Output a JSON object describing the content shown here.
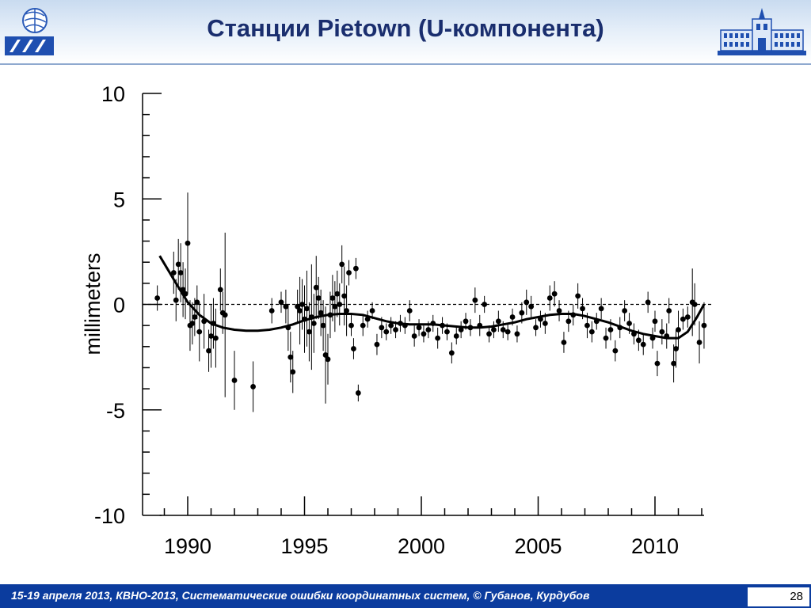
{
  "header": {
    "title": "Станции Pietown (U-компонента)",
    "logo_left_icon": "ipa-logo-icon",
    "logo_right_icon": "building-icon"
  },
  "footer": {
    "text": "15-19  апреля  2013,  КВНО-2013,  Систематические ошибки координатных систем, © Губанов, Курдубов",
    "page_number": "28",
    "background_color": "#0b3c9e"
  },
  "chart_data": {
    "type": "scatter",
    "title": "",
    "xlabel": "",
    "ylabel": "millimeters",
    "xlim": [
      1988.0,
      2013.0
    ],
    "ylim": [
      -10,
      10
    ],
    "x_ticks": [
      1990,
      1995,
      2000,
      2005,
      2010
    ],
    "y_ticks": [
      10,
      5,
      0,
      -5,
      -10
    ],
    "grid": false,
    "reference_line": {
      "y": 0,
      "style": "dashed"
    },
    "series": [
      {
        "kind": "points_with_error_bars",
        "points": [
          [
            1988.7,
            0.3,
            0.6
          ],
          [
            1989.4,
            1.5,
            1.0
          ],
          [
            1989.5,
            0.2,
            1.0
          ],
          [
            1989.6,
            1.9,
            1.2
          ],
          [
            1989.7,
            1.5,
            1.4
          ],
          [
            1989.8,
            0.7,
            1.3
          ],
          [
            1989.9,
            0.5,
            1.2
          ],
          [
            1990.0,
            2.9,
            2.4
          ],
          [
            1990.1,
            -1.0,
            1.2
          ],
          [
            1990.2,
            -0.9,
            1.0
          ],
          [
            1990.3,
            -0.6,
            0.9
          ],
          [
            1990.4,
            0.1,
            0.8
          ],
          [
            1990.5,
            -1.3,
            1.4
          ],
          [
            1990.7,
            -0.8,
            1.3
          ],
          [
            1990.9,
            -2.2,
            1.0
          ],
          [
            1991.0,
            -1.5,
            1.5
          ],
          [
            1991.1,
            -0.9,
            1.2
          ],
          [
            1991.2,
            -1.6,
            1.4
          ],
          [
            1991.4,
            0.7,
            1.0
          ],
          [
            1991.5,
            -0.4,
            1.0
          ],
          [
            1991.6,
            -0.5,
            3.9
          ],
          [
            1992.0,
            -3.6,
            1.4
          ],
          [
            1992.8,
            -3.9,
            1.2
          ],
          [
            1993.6,
            -0.3,
            0.6
          ],
          [
            1994.0,
            0.1,
            0.5
          ],
          [
            1994.2,
            -0.1,
            0.8
          ],
          [
            1994.3,
            -1.1,
            1.1
          ],
          [
            1994.4,
            -2.5,
            1.2
          ],
          [
            1994.5,
            -3.2,
            1.0
          ],
          [
            1994.7,
            -0.1,
            0.8
          ],
          [
            1994.8,
            -0.3,
            1.6
          ],
          [
            1994.9,
            0.0,
            1.2
          ],
          [
            1995.0,
            -0.7,
            1.6
          ],
          [
            1995.1,
            -0.2,
            1.8
          ],
          [
            1995.2,
            -1.3,
            1.4
          ],
          [
            1995.3,
            -0.6,
            2.5
          ],
          [
            1995.4,
            -0.9,
            1.4
          ],
          [
            1995.5,
            0.8,
            1.5
          ],
          [
            1995.6,
            0.3,
            1.0
          ],
          [
            1995.7,
            -0.4,
            1.1
          ],
          [
            1995.8,
            -1.0,
            1.2
          ],
          [
            1995.9,
            -2.4,
            2.3
          ],
          [
            1996.0,
            -2.6,
            1.2
          ],
          [
            1996.1,
            -0.5,
            1.1
          ],
          [
            1996.2,
            0.3,
            1.1
          ],
          [
            1996.3,
            -0.1,
            1.2
          ],
          [
            1996.4,
            0.5,
            1.1
          ],
          [
            1996.5,
            0.0,
            1.0
          ],
          [
            1996.6,
            1.9,
            0.9
          ],
          [
            1996.7,
            0.4,
            1.4
          ],
          [
            1996.8,
            -0.3,
            1.2
          ],
          [
            1996.9,
            1.5,
            0.6
          ],
          [
            1997.0,
            -1.0,
            0.5
          ],
          [
            1997.1,
            -2.1,
            0.5
          ],
          [
            1997.2,
            1.7,
            0.5
          ],
          [
            1997.3,
            -4.2,
            0.4
          ],
          [
            1997.5,
            -1.0,
            0.5
          ],
          [
            1997.7,
            -0.7,
            0.4
          ],
          [
            1997.9,
            -0.3,
            0.4
          ],
          [
            1998.1,
            -1.9,
            0.5
          ],
          [
            1998.3,
            -1.1,
            0.5
          ],
          [
            1998.5,
            -1.3,
            0.4
          ],
          [
            1998.7,
            -1.0,
            0.4
          ],
          [
            1998.9,
            -1.2,
            0.4
          ],
          [
            1999.1,
            -0.9,
            0.4
          ],
          [
            1999.3,
            -1.0,
            0.4
          ],
          [
            1999.5,
            -0.3,
            0.5
          ],
          [
            1999.7,
            -1.5,
            0.5
          ],
          [
            1999.9,
            -1.1,
            0.4
          ],
          [
            2000.1,
            -1.4,
            0.4
          ],
          [
            2000.3,
            -1.2,
            0.4
          ],
          [
            2000.5,
            -0.9,
            0.4
          ],
          [
            2000.7,
            -1.6,
            0.5
          ],
          [
            2000.9,
            -1.0,
            0.4
          ],
          [
            2001.1,
            -1.3,
            0.4
          ],
          [
            2001.3,
            -2.3,
            0.5
          ],
          [
            2001.5,
            -1.5,
            0.4
          ],
          [
            2001.7,
            -1.2,
            0.4
          ],
          [
            2001.9,
            -0.8,
            0.4
          ],
          [
            2002.1,
            -1.1,
            0.4
          ],
          [
            2002.3,
            0.2,
            0.6
          ],
          [
            2002.5,
            -1.0,
            0.5
          ],
          [
            2002.7,
            0.0,
            0.4
          ],
          [
            2002.9,
            -1.4,
            0.4
          ],
          [
            2003.1,
            -1.2,
            0.4
          ],
          [
            2003.3,
            -0.8,
            0.5
          ],
          [
            2003.5,
            -1.2,
            0.4
          ],
          [
            2003.7,
            -1.3,
            0.4
          ],
          [
            2003.9,
            -0.6,
            0.4
          ],
          [
            2004.1,
            -1.4,
            0.4
          ],
          [
            2004.3,
            -0.4,
            0.5
          ],
          [
            2004.5,
            0.1,
            0.6
          ],
          [
            2004.7,
            -0.1,
            0.5
          ],
          [
            2004.9,
            -1.1,
            0.4
          ],
          [
            2005.1,
            -0.7,
            0.4
          ],
          [
            2005.3,
            -0.9,
            0.5
          ],
          [
            2005.5,
            0.3,
            0.6
          ],
          [
            2005.7,
            0.5,
            0.6
          ],
          [
            2005.9,
            -0.3,
            0.5
          ],
          [
            2006.1,
            -1.8,
            0.5
          ],
          [
            2006.3,
            -0.8,
            0.5
          ],
          [
            2006.5,
            -0.5,
            0.5
          ],
          [
            2006.7,
            0.4,
            0.6
          ],
          [
            2006.9,
            -0.2,
            0.5
          ],
          [
            2007.1,
            -1.0,
            0.6
          ],
          [
            2007.3,
            -1.3,
            0.5
          ],
          [
            2007.5,
            -0.8,
            0.4
          ],
          [
            2007.7,
            -0.2,
            0.5
          ],
          [
            2007.9,
            -1.6,
            0.5
          ],
          [
            2008.1,
            -1.2,
            0.5
          ],
          [
            2008.3,
            -2.2,
            0.5
          ],
          [
            2008.5,
            -1.1,
            0.5
          ],
          [
            2008.7,
            -0.3,
            0.5
          ],
          [
            2008.9,
            -0.9,
            0.5
          ],
          [
            2009.1,
            -1.4,
            0.5
          ],
          [
            2009.3,
            -1.7,
            0.5
          ],
          [
            2009.5,
            -1.9,
            0.5
          ],
          [
            2009.7,
            0.1,
            0.5
          ],
          [
            2009.9,
            -1.6,
            0.5
          ],
          [
            2010.0,
            -0.8,
            0.5
          ],
          [
            2010.1,
            -2.8,
            0.6
          ],
          [
            2010.3,
            -1.3,
            0.6
          ],
          [
            2010.5,
            -1.5,
            0.6
          ],
          [
            2010.6,
            -0.3,
            0.6
          ],
          [
            2010.8,
            -2.8,
            0.9
          ],
          [
            2010.9,
            -2.1,
            0.9
          ],
          [
            2011.0,
            -1.2,
            0.9
          ],
          [
            2011.2,
            -0.7,
            0.5
          ],
          [
            2011.4,
            -0.6,
            0.5
          ],
          [
            2011.6,
            0.1,
            1.6
          ],
          [
            2011.7,
            0.0,
            1.0
          ],
          [
            2011.9,
            -1.8,
            1.0
          ],
          [
            2012.1,
            -1.0,
            1.1
          ]
        ]
      },
      {
        "kind": "trend_line",
        "points": [
          [
            1988.8,
            2.3
          ],
          [
            1989.5,
            1.0
          ],
          [
            1990.0,
            0.1
          ],
          [
            1990.5,
            -0.5
          ],
          [
            1991.0,
            -0.9
          ],
          [
            1991.5,
            -1.1
          ],
          [
            1992.0,
            -1.2
          ],
          [
            1992.5,
            -1.25
          ],
          [
            1993.0,
            -1.25
          ],
          [
            1993.5,
            -1.2
          ],
          [
            1994.0,
            -1.1
          ],
          [
            1994.5,
            -0.95
          ],
          [
            1995.0,
            -0.75
          ],
          [
            1995.5,
            -0.6
          ],
          [
            1996.0,
            -0.5
          ],
          [
            1996.5,
            -0.45
          ],
          [
            1997.0,
            -0.45
          ],
          [
            1997.5,
            -0.5
          ],
          [
            1998.0,
            -0.65
          ],
          [
            1998.5,
            -0.8
          ],
          [
            1999.0,
            -0.9
          ],
          [
            1999.5,
            -0.95
          ],
          [
            2000.0,
            -0.95
          ],
          [
            2000.5,
            -0.95
          ],
          [
            2001.0,
            -1.0
          ],
          [
            2001.5,
            -1.05
          ],
          [
            2002.0,
            -1.1
          ],
          [
            2002.5,
            -1.1
          ],
          [
            2003.0,
            -1.05
          ],
          [
            2003.5,
            -0.95
          ],
          [
            2004.0,
            -0.85
          ],
          [
            2004.5,
            -0.7
          ],
          [
            2005.0,
            -0.6
          ],
          [
            2005.5,
            -0.5
          ],
          [
            2006.0,
            -0.45
          ],
          [
            2006.5,
            -0.45
          ],
          [
            2007.0,
            -0.55
          ],
          [
            2007.5,
            -0.7
          ],
          [
            2008.0,
            -0.85
          ],
          [
            2008.5,
            -1.05
          ],
          [
            2009.0,
            -1.25
          ],
          [
            2009.5,
            -1.4
          ],
          [
            2010.0,
            -1.5
          ],
          [
            2010.5,
            -1.6
          ],
          [
            2011.0,
            -1.6
          ],
          [
            2011.4,
            -1.3
          ],
          [
            2011.8,
            -0.6
          ],
          [
            2012.1,
            0.0
          ]
        ]
      }
    ]
  }
}
